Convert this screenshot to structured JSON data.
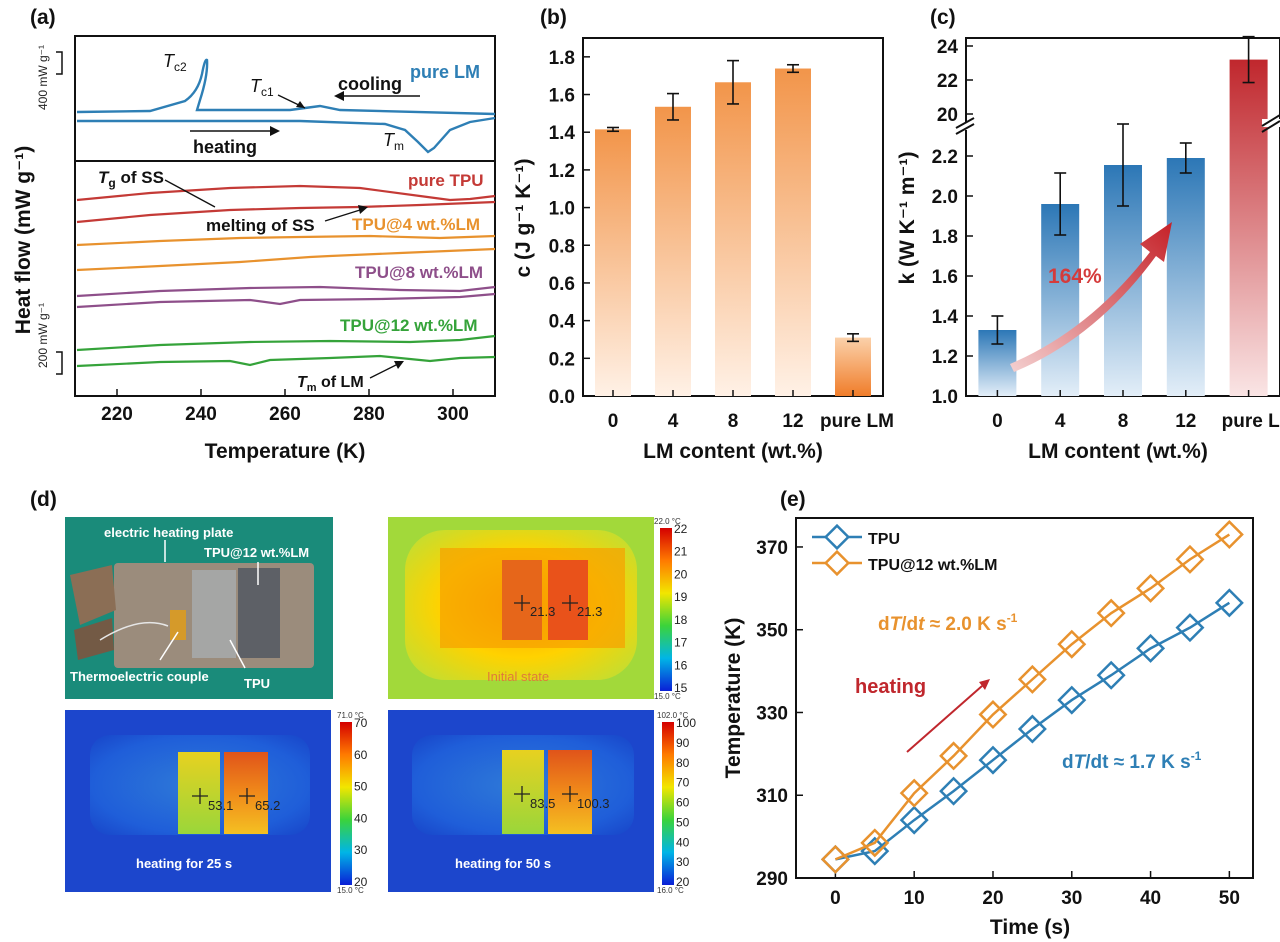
{
  "colors": {
    "blue": "#2e7fb5",
    "red": "#c43a36",
    "orange": "#e8922e",
    "purple": "#8e4f8a",
    "green": "#35a33a",
    "dark_red": "#c0272d"
  },
  "chart_data": [
    {
      "panel": "(a)",
      "type": "line",
      "xlabel": "Temperature (K)",
      "ylabel": "Heat flow (mW g⁻¹)",
      "xlim": [
        210,
        310
      ],
      "x_ticks": [
        "220",
        "240",
        "260",
        "280",
        "300"
      ],
      "scale_bars": [
        "400 mW g⁻¹",
        "200 mW g⁻¹"
      ],
      "series": [
        {
          "name": "pure LM",
          "note": "cooling and heating DSC curves"
        },
        {
          "name": "pure TPU"
        },
        {
          "name": "TPU@4 wt.%LM"
        },
        {
          "name": "TPU@8 wt.%LM"
        },
        {
          "name": "TPU@12 wt.%LM"
        }
      ],
      "annotations": {
        "tc2": "T",
        "tc2_sub": "c2",
        "tc1": "T",
        "tc1_sub": "c1",
        "tm": "T",
        "tm_sub": "m",
        "cooling": "cooling",
        "heating": "heating",
        "tg_ss": "T",
        "tg_sub": "g",
        "tg_rest": " of SS",
        "melting_ss": "melting of SS",
        "tm_lm": "T",
        "tm_lm_sub": "m",
        "tm_lm_rest": " of LM"
      }
    },
    {
      "panel": "(b)",
      "type": "bar",
      "xlabel": "LM content (wt.%)",
      "ylabel": "c (J g⁻¹ K⁻¹)",
      "ylim": [
        0,
        1.9
      ],
      "y_ticks": [
        "0.0",
        "0.2",
        "0.4",
        "0.6",
        "0.8",
        "1.0",
        "1.2",
        "1.4",
        "1.6",
        "1.8"
      ],
      "categories": [
        "0",
        "4",
        "8",
        "12",
        "pure LM"
      ],
      "values": [
        1.415,
        1.535,
        1.665,
        1.738,
        0.31
      ],
      "errors": [
        0.01,
        0.07,
        0.115,
        0.02,
        0.02
      ]
    },
    {
      "panel": "(c)",
      "type": "bar",
      "xlabel": "LM content (wt.%)",
      "ylabel": "k (W K⁻¹ m⁻¹)",
      "y_break": {
        "lower": [
          1.0,
          2.4
        ],
        "upper": [
          20,
          25
        ]
      },
      "y_ticks_lower": [
        "1.0",
        "1.2",
        "1.4",
        "1.6",
        "1.8",
        "2.0",
        "2.2"
      ],
      "y_ticks_upper": [
        "20",
        "22",
        "24"
      ],
      "categories": [
        "0",
        "4",
        "8",
        "12",
        "pure LM"
      ],
      "values": [
        1.33,
        1.96,
        2.155,
        2.19,
        23.2
      ],
      "errors": [
        0.07,
        0.155,
        0.205,
        0.075,
        1.35
      ],
      "annotation": "164%"
    },
    {
      "panel": "(e)",
      "type": "line",
      "xlabel": "Time (s)",
      "ylabel": "Temperature (K)",
      "xlim": [
        -5,
        53
      ],
      "ylim": [
        290,
        377
      ],
      "x_ticks": [
        "0",
        "10",
        "20",
        "30",
        "40",
        "50"
      ],
      "y_ticks": [
        "290",
        "310",
        "330",
        "350",
        "370"
      ],
      "x": [
        0,
        5,
        10,
        15,
        20,
        25,
        30,
        35,
        40,
        45,
        50
      ],
      "series": [
        {
          "name": "TPU",
          "values": [
            294.5,
            296.5,
            304.0,
            311.0,
            318.5,
            326.0,
            333.0,
            339.0,
            345.5,
            350.5,
            356.5
          ]
        },
        {
          "name": "TPU@12 wt.%LM",
          "values": [
            294.5,
            298.5,
            310.5,
            319.5,
            329.5,
            338.0,
            346.5,
            354.0,
            360.0,
            367.0,
            373.0
          ]
        }
      ],
      "annotations": {
        "heating": "heating",
        "rate_lm_prefix": "d",
        "rate_lm_t": "T",
        "rate_lm_mid": "/d",
        "rate_lm_t2": "t",
        "rate_lm_value": " ≈ 2.0 K s",
        "rate_lm_exp": "-1",
        "rate_tpu_prefix": "d",
        "rate_tpu_t": "T",
        "rate_tpu_mid": "/dt",
        "rate_tpu_value": " ≈ 1.7 K s",
        "rate_tpu_exp": "-1"
      }
    }
  ],
  "panel_d": {
    "label": "(d)",
    "photo": {
      "electric_heating_plate": "electric heating plate",
      "sample_lm": "TPU@12 wt.%LM",
      "thermoelectric_couple": "Thermoelectric couple",
      "tpu": "TPU"
    },
    "thermal_images": [
      {
        "caption": "Initial state",
        "t1": "21.3",
        "t2": "21.3",
        "scale_max": "22.0 °C",
        "scale_min": "15.0 °C",
        "scale_ticks": [
          "22",
          "21",
          "20",
          "19",
          "18",
          "17",
          "16",
          "15"
        ]
      },
      {
        "caption": "heating for 25 s",
        "t1": "53.1",
        "t2": "65.2",
        "scale_max": "71.0 °C",
        "scale_min": "15.0 °C",
        "scale_ticks": [
          "70",
          "60",
          "50",
          "40",
          "30",
          "20"
        ]
      },
      {
        "caption": "heating for 50 s",
        "t1": "83.5",
        "t2": "100.3",
        "scale_max": "102.0 °C",
        "scale_min": "16.0 °C",
        "scale_ticks": [
          "100",
          "90",
          "80",
          "70",
          "60",
          "50",
          "40",
          "30",
          "20"
        ]
      }
    ]
  }
}
